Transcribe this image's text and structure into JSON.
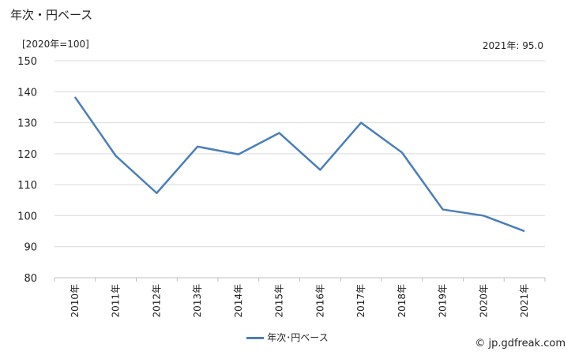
{
  "header": {
    "title": "年次・円ベース",
    "unit_label": "[2020年=100]",
    "latest_value": "2021年: 95.0"
  },
  "legend": {
    "label": "年次･円ベース"
  },
  "credit": "© jp.gdfreak.com",
  "colors": {
    "line": "#4a7ebb",
    "grid": "#d9d9d9"
  },
  "chart_data": {
    "type": "line",
    "categories": [
      "2010年",
      "2011年",
      "2012年",
      "2013年",
      "2014年",
      "2015年",
      "2016年",
      "2017年",
      "2018年",
      "2019年",
      "2020年",
      "2021年"
    ],
    "series": [
      {
        "name": "年次･円ベース",
        "values": [
          138.3,
          119.3,
          107.3,
          122.3,
          119.8,
          126.7,
          114.8,
          130.0,
          120.4,
          102.0,
          100.0,
          95.0
        ]
      }
    ],
    "ylim": [
      80,
      150
    ],
    "yticks": [
      80,
      90,
      100,
      110,
      120,
      130,
      140,
      150
    ],
    "grid": true,
    "legend_position": "bottom"
  }
}
